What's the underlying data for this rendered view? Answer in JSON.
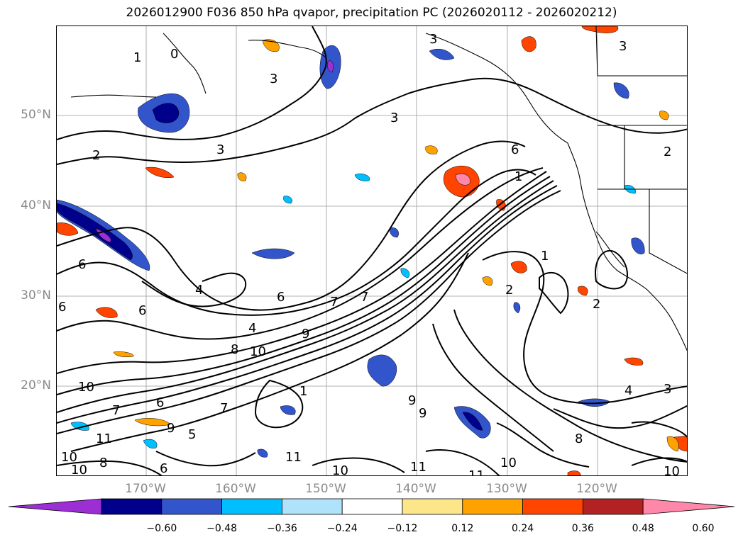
{
  "title": "2026012900 F036 850 hPa qvapor, precipitation PC (2026020112 - 2026020212)",
  "map": {
    "lat_labels": [
      "50°N",
      "40°N",
      "30°N",
      "20°N"
    ],
    "lon_labels": [
      "170°W",
      "160°W",
      "150°W",
      "140°W",
      "130°W",
      "120°W"
    ],
    "contour_labels": [
      "1",
      "0",
      "3",
      "3",
      "3",
      "3",
      "2",
      "3",
      "6",
      "1",
      "6",
      "4",
      "6",
      "6",
      "6",
      "4",
      "7",
      "7",
      "8",
      "9",
      "10",
      "10",
      "9",
      "9",
      "1",
      "11",
      "11",
      "10",
      "11",
      "7",
      "6",
      "10",
      "10",
      "11",
      "2",
      "1",
      "2",
      "4",
      "3",
      "2",
      "8",
      "9",
      "8",
      "6",
      "5",
      "7",
      "10",
      "10"
    ]
  },
  "colorbar": {
    "colors": [
      "#9b2fd4",
      "#00008b",
      "#3355cc",
      "#00bfff",
      "#aee3fb",
      "#ffffff",
      "#fde68a",
      "#ffa200",
      "#ff4500",
      "#b22222",
      "#ff88aa"
    ],
    "tick_labels": [
      "−0.60",
      "−0.48",
      "−0.36",
      "−0.24",
      "−0.12",
      "0.12",
      "0.24",
      "0.36",
      "0.48",
      "0.60"
    ]
  }
}
